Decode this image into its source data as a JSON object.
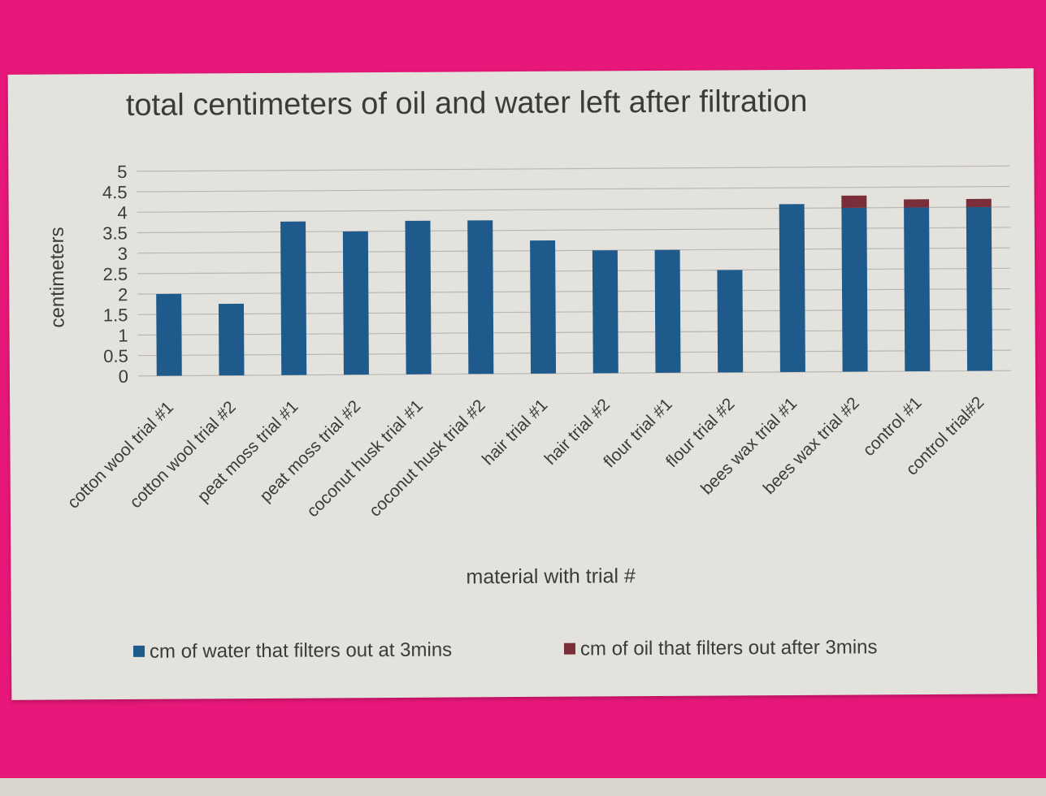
{
  "chart_data": {
    "type": "bar",
    "stacked": true,
    "title": "total centimeters of oil and water left after filtration",
    "xlabel": "material with trial #",
    "ylabel": "centimeters",
    "ylim": [
      0,
      5
    ],
    "yticks": [
      "0",
      "0.5",
      "1",
      "1.5",
      "2",
      "2.5",
      "3",
      "3.5",
      "4",
      "4.5",
      "5"
    ],
    "grid": true,
    "legend_position": "bottom",
    "categories": [
      "cotton wool trial #1",
      "cotton wool trial #2",
      "peat moss trial #1",
      "peat moss trial #2",
      "coconut husk trial #1",
      "coconut husk trial #2",
      "hair trial #1",
      "hair trial #2",
      "flour trial #1",
      "flour trial #2",
      "bees wax trial #1",
      "bees wax trial #2",
      "control #1",
      "control trial#2"
    ],
    "series": [
      {
        "name": "cm of water that filters out at 3mins",
        "color": "#1f5a8c",
        "values": [
          2.0,
          1.75,
          3.75,
          3.5,
          3.75,
          3.75,
          3.25,
          3.0,
          3.0,
          2.5,
          4.1,
          4.0,
          4.0,
          4.0
        ]
      },
      {
        "name": "cm of oil that filters out after 3mins",
        "color": "#7a2e3a",
        "values": [
          0,
          0,
          0,
          0,
          0,
          0,
          0,
          0,
          0,
          0,
          0,
          0.3,
          0.2,
          0.2
        ]
      }
    ]
  }
}
